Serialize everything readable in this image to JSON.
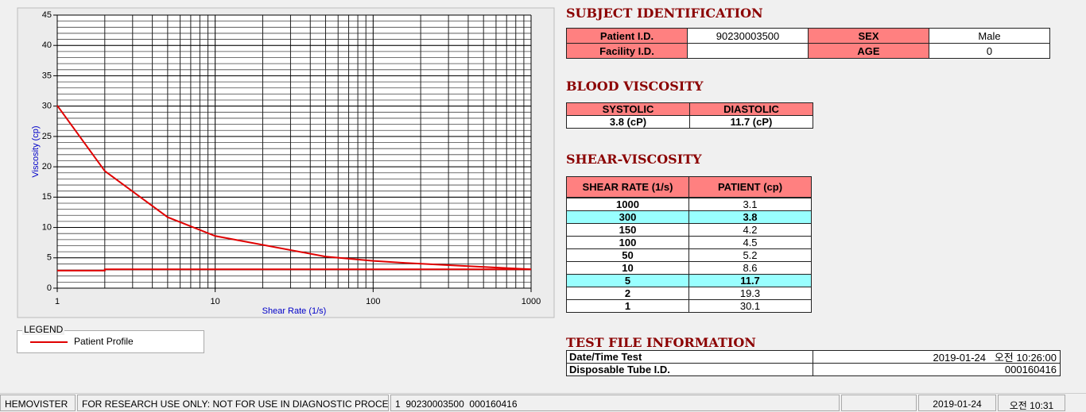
{
  "chart_data": {
    "type": "line",
    "xlabel": "Shear Rate (1/s)",
    "ylabel": "Viscosity (cp)",
    "xscale": "log",
    "xlim": [
      1,
      1000
    ],
    "xticks": [
      1,
      10,
      100,
      1000
    ],
    "xminor": [
      2,
      3,
      4,
      5,
      6,
      7,
      8,
      9,
      20,
      30,
      40,
      50,
      60,
      70,
      80,
      90,
      200,
      300,
      400,
      500,
      600,
      700,
      800,
      900
    ],
    "ylim": [
      0,
      45
    ],
    "yticks": [
      0,
      5,
      10,
      15,
      20,
      25,
      30,
      35,
      40,
      45
    ],
    "yminor_step": 1,
    "grid": true,
    "legend_title": "LEGEND",
    "series": [
      {
        "name": "Patient Profile",
        "color": "#e00000",
        "x": [
          1,
          2,
          5,
          10,
          50,
          100,
          150,
          300,
          1000
        ],
        "values": [
          30.1,
          19.3,
          11.7,
          8.6,
          5.2,
          4.5,
          4.2,
          3.8,
          3.1
        ]
      },
      {
        "color": "#e00000",
        "x": [
          1,
          2,
          2,
          1000
        ],
        "values": [
          2.9,
          2.9,
          3.1,
          3.1
        ]
      }
    ]
  },
  "subject_identification": {
    "title": "SUBJECT IDENTIFICATION",
    "rows": [
      [
        "Patient I.D.",
        "90230003500",
        "SEX",
        "Male"
      ],
      [
        "Facility I.D.",
        null,
        "AGE",
        0
      ]
    ]
  },
  "blood_viscosity": {
    "title": "BLOOD VISCOSITY",
    "rows": [
      [
        "SYSTOLIC",
        "DIASTOLIC"
      ],
      [
        "3.8 (cP)",
        "11.7 (cP)"
      ]
    ]
  },
  "shear_viscosity": {
    "title": "SHEAR-VISCOSITY",
    "highlight_rows": [
      2,
      7
    ],
    "rows": [
      [
        "SHEAR RATE (1/s)",
        "PATIENT (cp)"
      ],
      [
        1000,
        3.1
      ],
      [
        300,
        3.8
      ],
      [
        150,
        4.2
      ],
      [
        100,
        4.5
      ],
      [
        50,
        5.2
      ],
      [
        10,
        8.6
      ],
      [
        5,
        11.7
      ],
      [
        2,
        19.3
      ],
      [
        1,
        30.1
      ]
    ]
  },
  "test_file": {
    "title": "TEST FILE INFORMATION",
    "rows": [
      [
        "Date/Time Test",
        "2019-01-24   오전 10:26:00"
      ],
      [
        "Disposable Tube I.D.",
        "000160416"
      ]
    ]
  },
  "status_bar": [
    "HEMOVISTER",
    "FOR RESEARCH USE ONLY: NOT FOR USE IN DIAGNOSTIC PROCEDURES",
    "1  90230003500  000160416",
    null,
    "2019-01-24",
    "오전 10:31"
  ]
}
